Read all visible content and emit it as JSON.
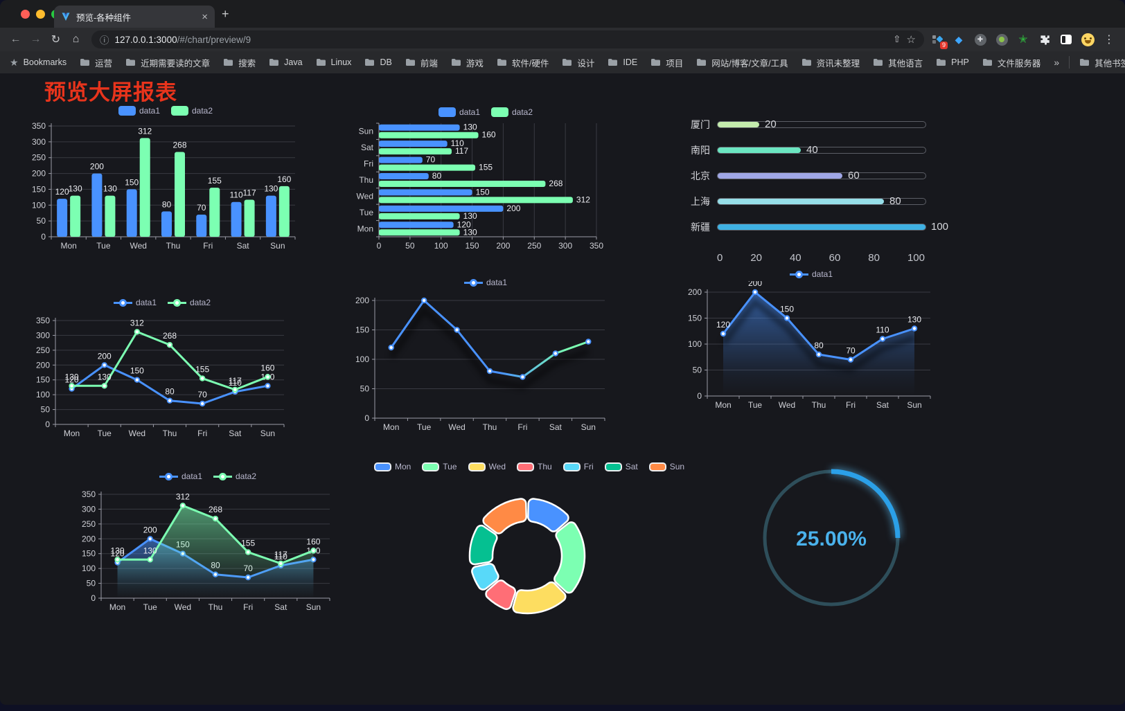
{
  "browser": {
    "tab_title": "预览-各种组件",
    "url_host": "127.0.0.1:3000",
    "url_path": "/#/chart/preview/9",
    "bookmarks_label": "Bookmarks",
    "bookmarks": [
      "运营",
      "近期需要读的文章",
      "搜索",
      "Java",
      "Linux",
      "DB",
      "前端",
      "游戏",
      "软件/硬件",
      "设计",
      "IDE",
      "项目",
      "网站/博客/文章/工具",
      "资讯未整理",
      "其他语言",
      "PHP",
      "文件服务器"
    ],
    "overflow_chevron": "»",
    "other_bookmarks": "其他书签",
    "extension_badge": "9",
    "icons": {
      "back": "←",
      "forward": "→",
      "reload": "↻",
      "home": "⌂",
      "info": "ⓘ",
      "share": "⇧",
      "star": "☆",
      "menu": "⋮",
      "close": "×",
      "newtab": "+",
      "gem": "◆",
      "cross": "✚",
      "green_star": "✭"
    }
  },
  "page": {
    "title": "预览大屏报表",
    "title_color": "#e8341c"
  },
  "theme": {
    "background": "#17181d",
    "page_bottom": "#0e1024",
    "grid_line": "#393a42",
    "axis_line": "#9b9ca6",
    "axis_text": "#cfd0d6",
    "value_label_text": "#ecedf1",
    "legend_text": "#b9b8ce"
  },
  "chart_data": [
    {
      "id": "grouped-bar-vertical",
      "type": "bar",
      "categories": [
        "Mon",
        "Tue",
        "Wed",
        "Thu",
        "Fri",
        "Sat",
        "Sun"
      ],
      "series": [
        {
          "name": "data1",
          "color": "#4992ff",
          "values": [
            120,
            200,
            150,
            80,
            70,
            110,
            130
          ]
        },
        {
          "name": "data2",
          "color": "#7cffb2",
          "values": [
            130,
            130,
            312,
            268,
            155,
            117,
            160
          ]
        }
      ],
      "ylim": [
        0,
        350
      ],
      "ystep": 50,
      "value_labels": true,
      "legend_position": "top",
      "grid": true
    },
    {
      "id": "grouped-bar-horizontal",
      "type": "bar",
      "orientation": "horizontal",
      "categories": [
        "Sun",
        "Sat",
        "Fri",
        "Thu",
        "Wed",
        "Tue",
        "Mon"
      ],
      "series": [
        {
          "name": "data1",
          "color": "#4992ff",
          "values": [
            130,
            110,
            70,
            80,
            150,
            200,
            120
          ]
        },
        {
          "name": "data2",
          "color": "#7cffb2",
          "values": [
            160,
            117,
            155,
            268,
            312,
            130,
            130
          ]
        }
      ],
      "xlim": [
        0,
        350
      ],
      "xstep": 50,
      "value_labels": true,
      "legend_position": "top",
      "grid": true
    },
    {
      "id": "progress-bars",
      "type": "bar",
      "orientation": "horizontal",
      "categories": [
        "厦门",
        "南阳",
        "北京",
        "上海",
        "新疆"
      ],
      "values": [
        20,
        40,
        60,
        80,
        100
      ],
      "colors": [
        "#c4ebad",
        "#6be6c1",
        "#a0a7e6",
        "#96dee8",
        "#3fb1e3"
      ],
      "xlim": [
        0,
        100
      ],
      "xticks": [
        0,
        20,
        40,
        60,
        80,
        100
      ],
      "value_labels": true
    },
    {
      "id": "line-two-series",
      "type": "line",
      "categories": [
        "Mon",
        "Tue",
        "Wed",
        "Thu",
        "Fri",
        "Sat",
        "Sun"
      ],
      "series": [
        {
          "name": "data1",
          "color": "#4992ff",
          "values": [
            120,
            200,
            150,
            80,
            70,
            110,
            130
          ]
        },
        {
          "name": "data2",
          "color": "#7cffb2",
          "values": [
            130,
            130,
            312,
            268,
            155,
            117,
            160
          ]
        }
      ],
      "ylim": [
        0,
        350
      ],
      "ystep": 50,
      "value_labels": true,
      "markers": true,
      "legend_position": "top",
      "grid": true
    },
    {
      "id": "line-gradient",
      "type": "line",
      "categories": [
        "Mon",
        "Tue",
        "Wed",
        "Thu",
        "Fri",
        "Sat",
        "Sun"
      ],
      "series": [
        {
          "name": "data1",
          "color_start": "#4992ff",
          "color_end": "#7cffb2",
          "values": [
            120,
            200,
            150,
            80,
            70,
            110,
            130
          ]
        }
      ],
      "ylim": [
        0,
        200
      ],
      "ystep": 50,
      "value_labels": false,
      "markers": true,
      "legend_position": "top",
      "grid": true
    },
    {
      "id": "area-single",
      "type": "area",
      "categories": [
        "Mon",
        "Tue",
        "Wed",
        "Thu",
        "Fri",
        "Sat",
        "Sun"
      ],
      "series": [
        {
          "name": "data1",
          "color": "#4992ff",
          "values": [
            120,
            200,
            150,
            80,
            70,
            110,
            130
          ]
        }
      ],
      "ylim": [
        0,
        200
      ],
      "ystep": 50,
      "value_labels": true,
      "markers": true,
      "legend_position": "top",
      "grid": true
    },
    {
      "id": "area-two-series",
      "type": "area",
      "categories": [
        "Mon",
        "Tue",
        "Wed",
        "Thu",
        "Fri",
        "Sat",
        "Sun"
      ],
      "series": [
        {
          "name": "data1",
          "color": "#4992ff",
          "values": [
            120,
            200,
            150,
            80,
            70,
            110,
            130
          ]
        },
        {
          "name": "data2",
          "color": "#7cffb2",
          "values": [
            130,
            130,
            312,
            268,
            155,
            117,
            160
          ]
        }
      ],
      "ylim": [
        0,
        350
      ],
      "ystep": 50,
      "value_labels": true,
      "markers": true,
      "legend_position": "top",
      "grid": true
    },
    {
      "id": "donut",
      "type": "pie",
      "categories": [
        "Mon",
        "Tue",
        "Wed",
        "Thu",
        "Fri",
        "Sat",
        "Sun"
      ],
      "values": [
        120,
        200,
        150,
        80,
        70,
        110,
        130
      ],
      "colors": [
        "#4992ff",
        "#7cffb2",
        "#fddd60",
        "#ff6e76",
        "#58d9f9",
        "#05c091",
        "#ff8a45"
      ],
      "border_color": "#ffffff",
      "legend_position": "top"
    },
    {
      "id": "gauge",
      "type": "gauge",
      "value": 25,
      "max": 100,
      "label": "25.00%",
      "color": "#2ba0e8",
      "track_color": "#2e4e5a",
      "text_color": "#4ab2ec"
    }
  ]
}
